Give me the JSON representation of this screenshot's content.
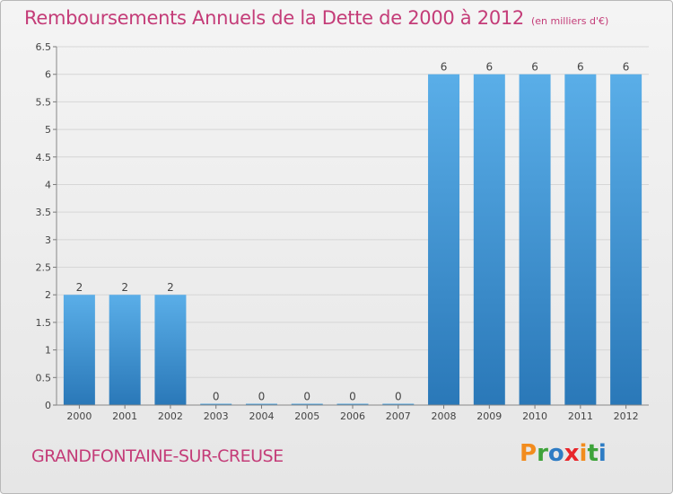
{
  "title": "Remboursements Annuels de la Dette de 2000 à 2012",
  "unit": "(en milliers d'€)",
  "commune": "GRANDFONTAINE-SUR-CREUSE",
  "logo": {
    "letters": [
      "P",
      "r",
      "o",
      "x",
      "i",
      "t",
      "i"
    ],
    "colors": [
      "#f28c1e",
      "#3ea33a",
      "#2e7cc4",
      "#e8262b",
      "#f28c1e",
      "#3ea33a",
      "#2e7cc4"
    ]
  },
  "colors": {
    "accent": "#c43c78",
    "bar": "#4a9fe0",
    "bar_dark": "#2f7fc1"
  },
  "chart_data": {
    "type": "bar",
    "categories": [
      "2000",
      "2001",
      "2002",
      "2003",
      "2004",
      "2005",
      "2006",
      "2007",
      "2008",
      "2009",
      "2010",
      "2011",
      "2012"
    ],
    "values": [
      2,
      2,
      2,
      0,
      0,
      0,
      0,
      0,
      6,
      6,
      6,
      6,
      6
    ],
    "value_labels": [
      "2",
      "2",
      "2",
      "0",
      "0",
      "0",
      "0",
      "0",
      "6",
      "6",
      "6",
      "6",
      "6"
    ],
    "y_ticks": [
      "0",
      "0.5",
      "1",
      "1.5",
      "2",
      "2.5",
      "3",
      "3.5",
      "4",
      "4.5",
      "5",
      "5.5",
      "6",
      "6.5"
    ],
    "ylim": [
      0,
      6.5
    ],
    "title": "Remboursements Annuels de la Dette de 2000 à 2012",
    "xlabel": "",
    "ylabel": ""
  }
}
